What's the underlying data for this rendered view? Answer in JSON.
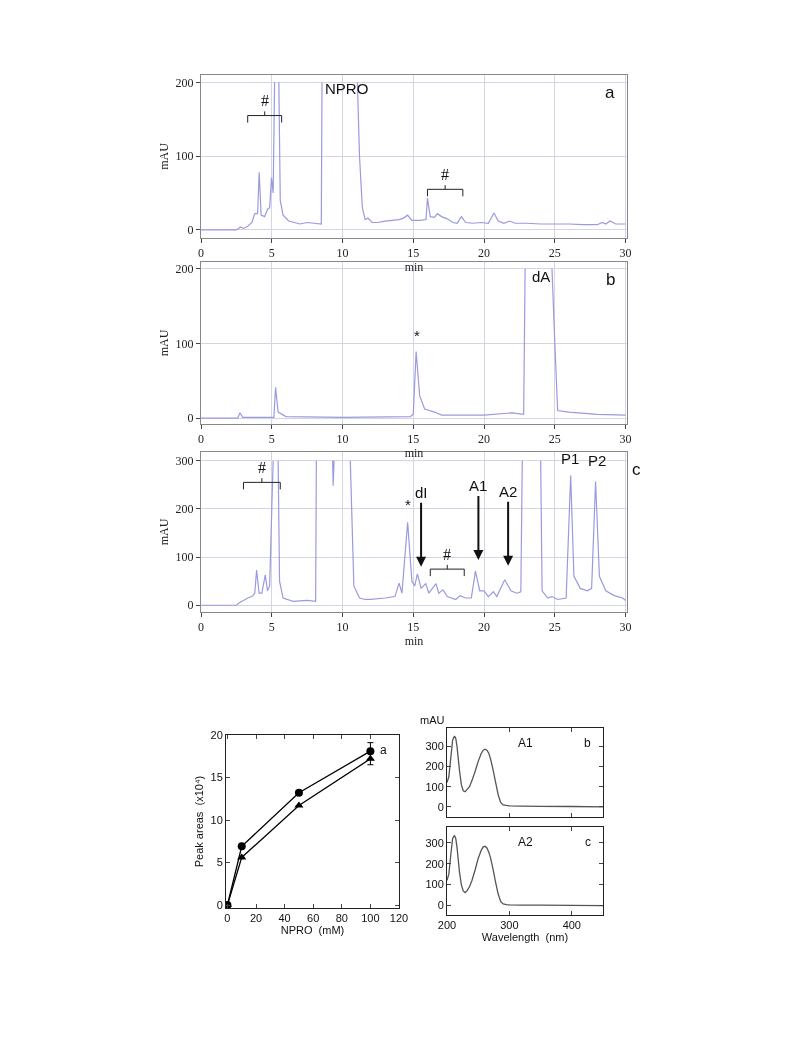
{
  "chart_data": [
    {
      "type": "line",
      "xlabel": "min",
      "ylabel": "mAU",
      "color": "#9a9ade",
      "grid": true,
      "xlim": [
        0,
        30.1
      ],
      "ylim": [
        -11,
        210
      ],
      "xticks": [
        0,
        5,
        10,
        15,
        20,
        25,
        30
      ],
      "yticks": [
        0,
        100,
        200
      ],
      "x": [
        0,
        2.5,
        2.8,
        3.0,
        3.3,
        3.6,
        3.8,
        4.0,
        4.11,
        4.25,
        4.5,
        4.7,
        4.85,
        4.98,
        5.1,
        5.2,
        5.25,
        5.45,
        5.5,
        5.6,
        5.8,
        6.2,
        7.0,
        7.5,
        8.0,
        8.5,
        8.55,
        8.6,
        11.0,
        11.05,
        11.2,
        11.4,
        11.6,
        11.8,
        12.1,
        12.5,
        13.0,
        13.5,
        14.0,
        14.3,
        14.6,
        14.9,
        15.5,
        15.9,
        16.0,
        16.2,
        16.5,
        16.7,
        17.0,
        17.4,
        17.8,
        18.1,
        18.4,
        18.7,
        19.2,
        19.8,
        20.3,
        20.7,
        21.0,
        21.4,
        21.8,
        22.2,
        22.6,
        23.0,
        24.0,
        25.0,
        26.0,
        27.0,
        28.0,
        28.35,
        28.6,
        28.9,
        29.3,
        30.0
      ],
      "values": [
        0,
        0,
        4,
        2,
        5,
        10,
        22,
        22,
        78,
        20,
        18,
        28,
        30,
        71,
        50,
        200,
        null,
        null,
        200,
        40,
        20,
        12,
        8,
        10,
        9,
        8,
        200,
        null,
        null,
        200,
        100,
        30,
        14,
        16,
        10,
        10,
        12,
        13,
        14,
        16,
        20,
        13,
        13,
        14,
        43,
        18,
        17,
        22,
        18,
        15,
        10,
        9,
        18,
        10,
        9,
        10,
        9,
        23,
        12,
        9,
        12,
        9,
        9,
        9,
        8,
        8,
        8,
        7,
        7,
        10,
        8,
        12,
        8,
        8
      ],
      "annotations": [
        "#",
        "NPRO",
        "#",
        "a"
      ]
    },
    {
      "type": "line",
      "xlabel": "min",
      "ylabel": "mAU",
      "color": "#9a9ade",
      "grid": true,
      "xlim": [
        0,
        30.1
      ],
      "ylim": [
        -8,
        209
      ],
      "xticks": [
        0,
        5,
        10,
        15,
        20,
        25,
        30
      ],
      "yticks": [
        0,
        100,
        200
      ],
      "x": [
        0,
        2.6,
        2.75,
        2.95,
        5.15,
        5.27,
        5.45,
        6.0,
        10.0,
        14.8,
        15.0,
        15.2,
        15.45,
        15.8,
        16.5,
        17.0,
        20.0,
        22.0,
        22.8,
        22.9,
        23.0,
        24.75,
        24.8,
        25.0,
        25.2,
        26.0,
        28.0,
        30.0
      ],
      "values": [
        0,
        0,
        7,
        1,
        1,
        41,
        8,
        2,
        1,
        2,
        5,
        89,
        30,
        12,
        8,
        4,
        4,
        7,
        5,
        200,
        null,
        null,
        200,
        100,
        10,
        8,
        5,
        4
      ],
      "annotations": [
        "*",
        "dA",
        "b"
      ]
    },
    {
      "type": "line",
      "xlabel": "min",
      "ylabel": "mAU",
      "color": "#9a9ade",
      "grid": true,
      "xlim": [
        0,
        30.1
      ],
      "ylim": [
        -14,
        318
      ],
      "xticks": [
        0,
        5,
        10,
        15,
        20,
        25,
        30
      ],
      "yticks": [
        0,
        100,
        200,
        300
      ],
      "x": [
        0,
        2.5,
        2.7,
        3.0,
        3.3,
        3.6,
        3.8,
        3.93,
        4.1,
        4.3,
        4.54,
        4.7,
        4.85,
        5.01,
        5.1,
        5.15,
        5.4,
        5.45,
        5.55,
        5.8,
        6.5,
        7.5,
        8.1,
        8.15,
        8.2,
        9.25,
        9.3,
        9.34,
        9.4,
        9.45,
        10.5,
        10.55,
        10.8,
        11.2,
        11.6,
        12.0,
        13.0,
        13.7,
        14.0,
        14.2,
        14.6,
        14.9,
        15.1,
        15.29,
        15.55,
        15.88,
        16.1,
        16.6,
        16.8,
        17.1,
        17.4,
        18.0,
        18.3,
        18.7,
        19.1,
        19.39,
        19.7,
        20.0,
        20.3,
        20.66,
        20.9,
        21.46,
        21.9,
        22.3,
        22.6,
        22.7,
        22.75,
        23.9,
        24.0,
        24.1,
        24.5,
        24.8,
        25.2,
        25.8,
        26.12,
        26.35,
        26.8,
        27.3,
        27.6,
        27.88,
        28.15,
        28.6,
        29.2,
        29.8,
        30.0
      ],
      "values": [
        0,
        0,
        5,
        10,
        15,
        18,
        25,
        73,
        25,
        25,
        63,
        30,
        40,
        210,
        300,
        null,
        null,
        300,
        50,
        15,
        8,
        10,
        8,
        300,
        null,
        null,
        300,
        248,
        300,
        null,
        null,
        300,
        40,
        15,
        12,
        12,
        15,
        18,
        46,
        25,
        172,
        50,
        40,
        65,
        35,
        45,
        25,
        45,
        25,
        32,
        18,
        12,
        20,
        15,
        15,
        71,
        30,
        30,
        18,
        28,
        18,
        53,
        30,
        25,
        28,
        300,
        null,
        null,
        300,
        30,
        15,
        18,
        12,
        15,
        269,
        60,
        35,
        30,
        35,
        257,
        60,
        30,
        20,
        15,
        10
      ],
      "annotations": [
        "#",
        "*",
        "dI",
        "#",
        "A1",
        "A2",
        "P1",
        "P2",
        "c"
      ]
    },
    {
      "type": "line",
      "xlabel": "NPRO  (mM)",
      "ylabel": "Peak areas  (x10⁴)",
      "xlim": [
        -1,
        120
      ],
      "ylim": [
        -0.35,
        20
      ],
      "xticks": [
        0,
        20,
        40,
        60,
        80,
        100,
        120
      ],
      "yticks": [
        0,
        5,
        10,
        15,
        20
      ],
      "x": [
        0,
        10,
        50,
        100
      ],
      "series": [
        {
          "color": "#000000",
          "marker": "triangle",
          "values": [
            0,
            5.6,
            11.7,
            17.2
          ],
          "errors": [
            null,
            null,
            null,
            0.7
          ]
        },
        {
          "color": "#000000",
          "marker": "circle",
          "values": [
            0,
            6.9,
            13.2,
            18.1
          ],
          "errors": [
            null,
            null,
            null,
            1.0
          ]
        }
      ],
      "annotations": [
        "a"
      ]
    },
    {
      "type": "line",
      "ylabel": "mAU",
      "color": "#555555",
      "tick_labels": "y",
      "xlim": [
        200,
        450
      ],
      "ylim": [
        -50,
        390
      ],
      "xticks": [
        200,
        300,
        400
      ],
      "yticks": [
        0,
        100,
        200,
        300
      ],
      "x": [
        200,
        203,
        206,
        209,
        212,
        214,
        216,
        218,
        220,
        223,
        226,
        229,
        232,
        236,
        240,
        245,
        250,
        255,
        258,
        261,
        264,
        267,
        270,
        274,
        278,
        282,
        286,
        290,
        295,
        300,
        320,
        350,
        400,
        450
      ],
      "values": [
        120,
        150,
        240,
        330,
        350,
        340,
        300,
        240,
        180,
        110,
        80,
        75,
        85,
        100,
        130,
        175,
        225,
        265,
        280,
        285,
        280,
        265,
        235,
        180,
        120,
        60,
        22,
        10,
        7,
        5,
        4,
        3,
        2,
        0
      ],
      "annotations": [
        "A1",
        "b"
      ]
    },
    {
      "type": "line",
      "xlabel": "Wavelength  (nm)",
      "color": "#555555",
      "xlim": [
        200,
        450
      ],
      "ylim": [
        -45,
        375
      ],
      "xticks": [
        200,
        300,
        400
      ],
      "yticks": [
        0,
        100,
        200,
        300
      ],
      "x": [
        200,
        203,
        206,
        209,
        212,
        214,
        216,
        218,
        220,
        223,
        226,
        229,
        232,
        236,
        240,
        245,
        250,
        255,
        258,
        261,
        264,
        267,
        270,
        274,
        278,
        282,
        286,
        290,
        295,
        300,
        320,
        350,
        400,
        450
      ],
      "values": [
        120,
        150,
        240,
        320,
        335,
        320,
        280,
        220,
        160,
        100,
        70,
        62,
        70,
        90,
        120,
        170,
        225,
        265,
        280,
        283,
        275,
        255,
        225,
        170,
        110,
        55,
        20,
        8,
        5,
        3,
        2,
        2,
        1,
        0
      ],
      "annotations": [
        "A2",
        "c"
      ]
    }
  ]
}
